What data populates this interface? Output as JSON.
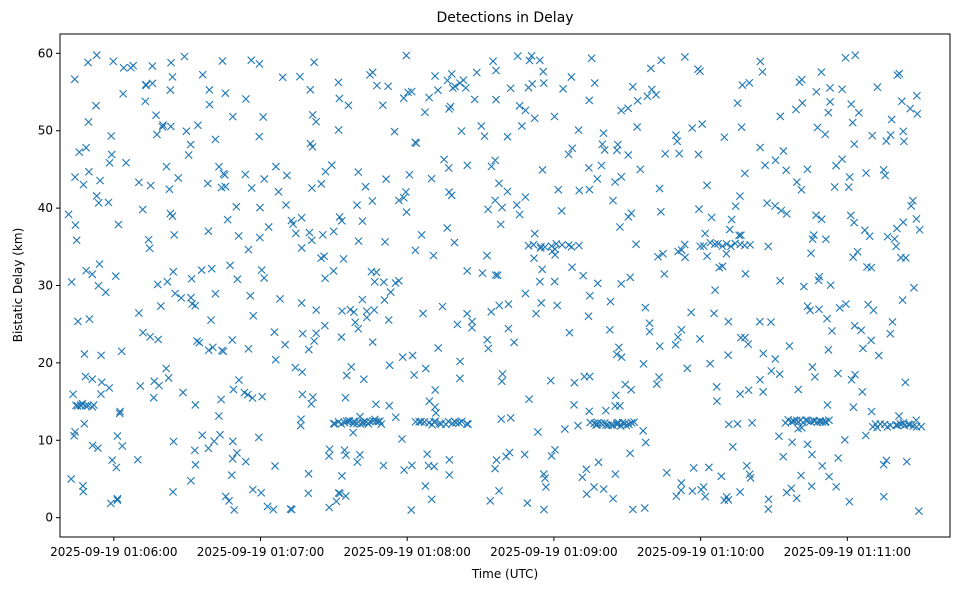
{
  "chart_data": {
    "type": "scatter",
    "title": "Detections in Delay",
    "xlabel": "Time (UTC)",
    "ylabel": "Bistatic Delay (km)",
    "marker": "x",
    "color": "#1f77b4",
    "xlim_seconds_after_start": [
      -22,
      342
    ],
    "ylim": [
      -2.5,
      62.5
    ],
    "x_start_label": "2025-09-19 01:06:00",
    "yticks": [
      0,
      10,
      20,
      30,
      40,
      50,
      60
    ],
    "xticks": [
      {
        "t": 0,
        "label": "2025-09-19 01:06:00"
      },
      {
        "t": 60,
        "label": "2025-09-19 01:07:00"
      },
      {
        "t": 120,
        "label": "2025-09-19 01:08:00"
      },
      {
        "t": 180,
        "label": "2025-09-19 01:09:00"
      },
      {
        "t": 240,
        "label": "2025-09-19 01:10:00"
      },
      {
        "t": 300,
        "label": "2025-09-19 01:11:00"
      }
    ],
    "grid": false,
    "legend": "none",
    "point_count_approx": 900,
    "time_range_seconds": [
      -19,
      330
    ],
    "delay_range_km": [
      0.8,
      59.8
    ],
    "clusters": [
      {
        "t_range": [
          -16,
          -8
        ],
        "delay": 14.5,
        "count": 8
      },
      {
        "t_range": [
          90,
          110
        ],
        "delay": 12.3,
        "count": 22
      },
      {
        "t_range": [
          125,
          145
        ],
        "delay": 12.2,
        "count": 18
      },
      {
        "t_range": [
          195,
          213
        ],
        "delay": 12.1,
        "count": 18
      },
      {
        "t_range": [
          275,
          292
        ],
        "delay": 12.4,
        "count": 20
      },
      {
        "t_range": [
          310,
          330
        ],
        "delay": 11.9,
        "count": 16
      },
      {
        "t_range": [
          240,
          260
        ],
        "delay": 35.3,
        "count": 12
      },
      {
        "t_range": [
          170,
          190
        ],
        "delay": 35.2,
        "count": 10
      }
    ]
  }
}
